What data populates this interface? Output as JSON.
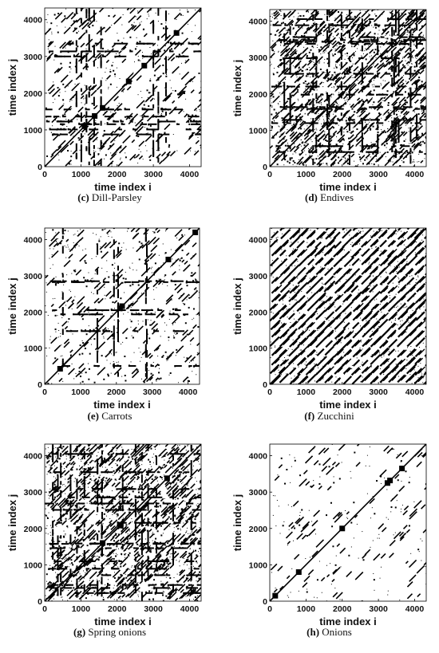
{
  "chart_data": [
    {
      "type": "heatmap",
      "panel": "c",
      "caption_letter": "(c)",
      "caption_text": "Dill-Parsley",
      "xlabel": "time index i",
      "ylabel": "time index j",
      "xlim": [
        0,
        4320
      ],
      "ylim": [
        0,
        4320
      ],
      "xticks": [
        0,
        1000,
        2000,
        3000,
        4000
      ],
      "yticks": [
        0,
        1000,
        2000,
        3000,
        4000
      ],
      "density": "sparse-blocky",
      "diagonal": true,
      "blobs": [
        [
          1100,
          1100
        ],
        [
          1380,
          1380
        ],
        [
          1600,
          1600
        ],
        [
          2320,
          2320
        ],
        [
          2750,
          2750
        ],
        [
          3640,
          3640
        ]
      ]
    },
    {
      "type": "heatmap",
      "panel": "d",
      "caption_letter": "(d)",
      "caption_text": "Endives",
      "xlabel": "time index i",
      "ylabel": "time index j",
      "xlim": [
        0,
        4320
      ],
      "ylim": [
        0,
        4320
      ],
      "xticks": [
        0,
        1000,
        2000,
        3000,
        4000
      ],
      "yticks": [
        0,
        1000,
        2000,
        3000,
        4000
      ],
      "density": "dense-blocky",
      "diagonal": true,
      "blobs": []
    },
    {
      "type": "heatmap",
      "panel": "e",
      "caption_letter": "(e)",
      "caption_text": "Carrots",
      "xlabel": "time index i",
      "ylabel": "time index j",
      "xlim": [
        0,
        4320
      ],
      "ylim": [
        0,
        4320
      ],
      "xticks": [
        0,
        1000,
        2000,
        3000,
        4000
      ],
      "yticks": [
        0,
        1000,
        2000,
        3000,
        4000
      ],
      "density": "sparse",
      "diagonal": true,
      "blobs": [
        [
          2100,
          2100
        ],
        [
          2160,
          2160
        ],
        [
          3450,
          3450
        ],
        [
          4200,
          4200
        ],
        [
          430,
          430
        ]
      ]
    },
    {
      "type": "heatmap",
      "panel": "f",
      "caption_letter": "(f)",
      "caption_text": "Zucchini",
      "xlabel": "time index i",
      "ylabel": "time index j",
      "xlim": [
        0,
        4320
      ],
      "ylim": [
        0,
        4320
      ],
      "xticks": [
        0,
        1000,
        2000,
        3000,
        4000
      ],
      "yticks": [
        0,
        1000,
        2000,
        3000,
        4000
      ],
      "density": "periodic-diagonal",
      "diagonal": true,
      "blobs": []
    },
    {
      "type": "heatmap",
      "panel": "g",
      "caption_letter": "(g)",
      "caption_text": "Spring onions",
      "xlabel": "time index i",
      "ylabel": "time index j",
      "xlim": [
        0,
        4320
      ],
      "ylim": [
        0,
        4320
      ],
      "xticks": [
        0,
        1000,
        2000,
        3000,
        4000
      ],
      "yticks": [
        0,
        1000,
        2000,
        3000,
        4000
      ],
      "density": "dense-blocky",
      "diagonal": true,
      "blobs": [
        [
          2080,
          2080
        ],
        [
          3380,
          3380
        ],
        [
          1600,
          1600
        ]
      ]
    },
    {
      "type": "heatmap",
      "panel": "h",
      "caption_letter": "(h)",
      "caption_text": "Onions",
      "xlabel": "time index i",
      "ylabel": "time index j",
      "xlim": [
        0,
        4320
      ],
      "ylim": [
        0,
        4320
      ],
      "xticks": [
        0,
        1000,
        2000,
        3000,
        4000
      ],
      "yticks": [
        0,
        1000,
        2000,
        3000,
        4000
      ],
      "density": "very-sparse",
      "diagonal": true,
      "blobs": [
        [
          3250,
          3250
        ],
        [
          3320,
          3320
        ],
        [
          3650,
          3650
        ],
        [
          2000,
          2000
        ],
        [
          800,
          800
        ],
        [
          150,
          150
        ]
      ]
    }
  ]
}
